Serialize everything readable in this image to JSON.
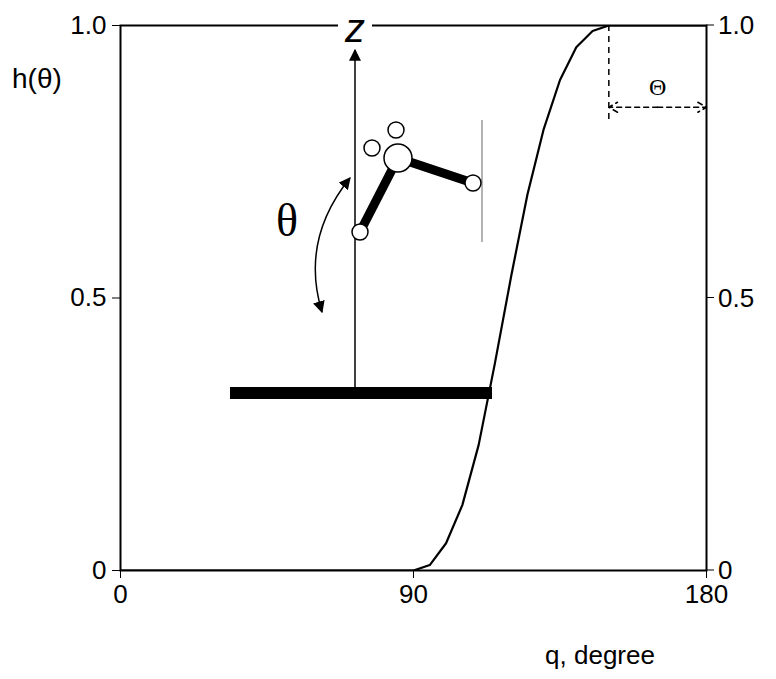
{
  "chart_data": {
    "type": "line",
    "xlabel": "q, degree",
    "ylabel": "h(θ)",
    "x": [
      0,
      30,
      60,
      90,
      95,
      100,
      105,
      110,
      115,
      120,
      125,
      130,
      135,
      140,
      145,
      150,
      165,
      180
    ],
    "values": [
      0,
      0,
      0,
      0,
      0.01,
      0.05,
      0.12,
      0.23,
      0.38,
      0.54,
      0.69,
      0.81,
      0.9,
      0.96,
      0.99,
      1,
      1,
      1
    ],
    "color": "#000000",
    "xlim": [
      0,
      180
    ],
    "xticks": [
      0,
      90,
      180
    ],
    "ylim": [
      0,
      1
    ],
    "yticks": [
      0,
      0.5,
      {
        "value": 1,
        "label": "1.0"
      }
    ],
    "y2lim": [
      0,
      1
    ],
    "y2ticks": [
      0,
      0.5,
      {
        "value": 1,
        "label": "1.0"
      }
    ],
    "grid": false,
    "annotations": [
      {
        "text": "z"
      },
      {
        "text": "θ"
      },
      {
        "text": "Θ",
        "x": [
          150,
          180
        ],
        "y": 0.85
      }
    ]
  }
}
